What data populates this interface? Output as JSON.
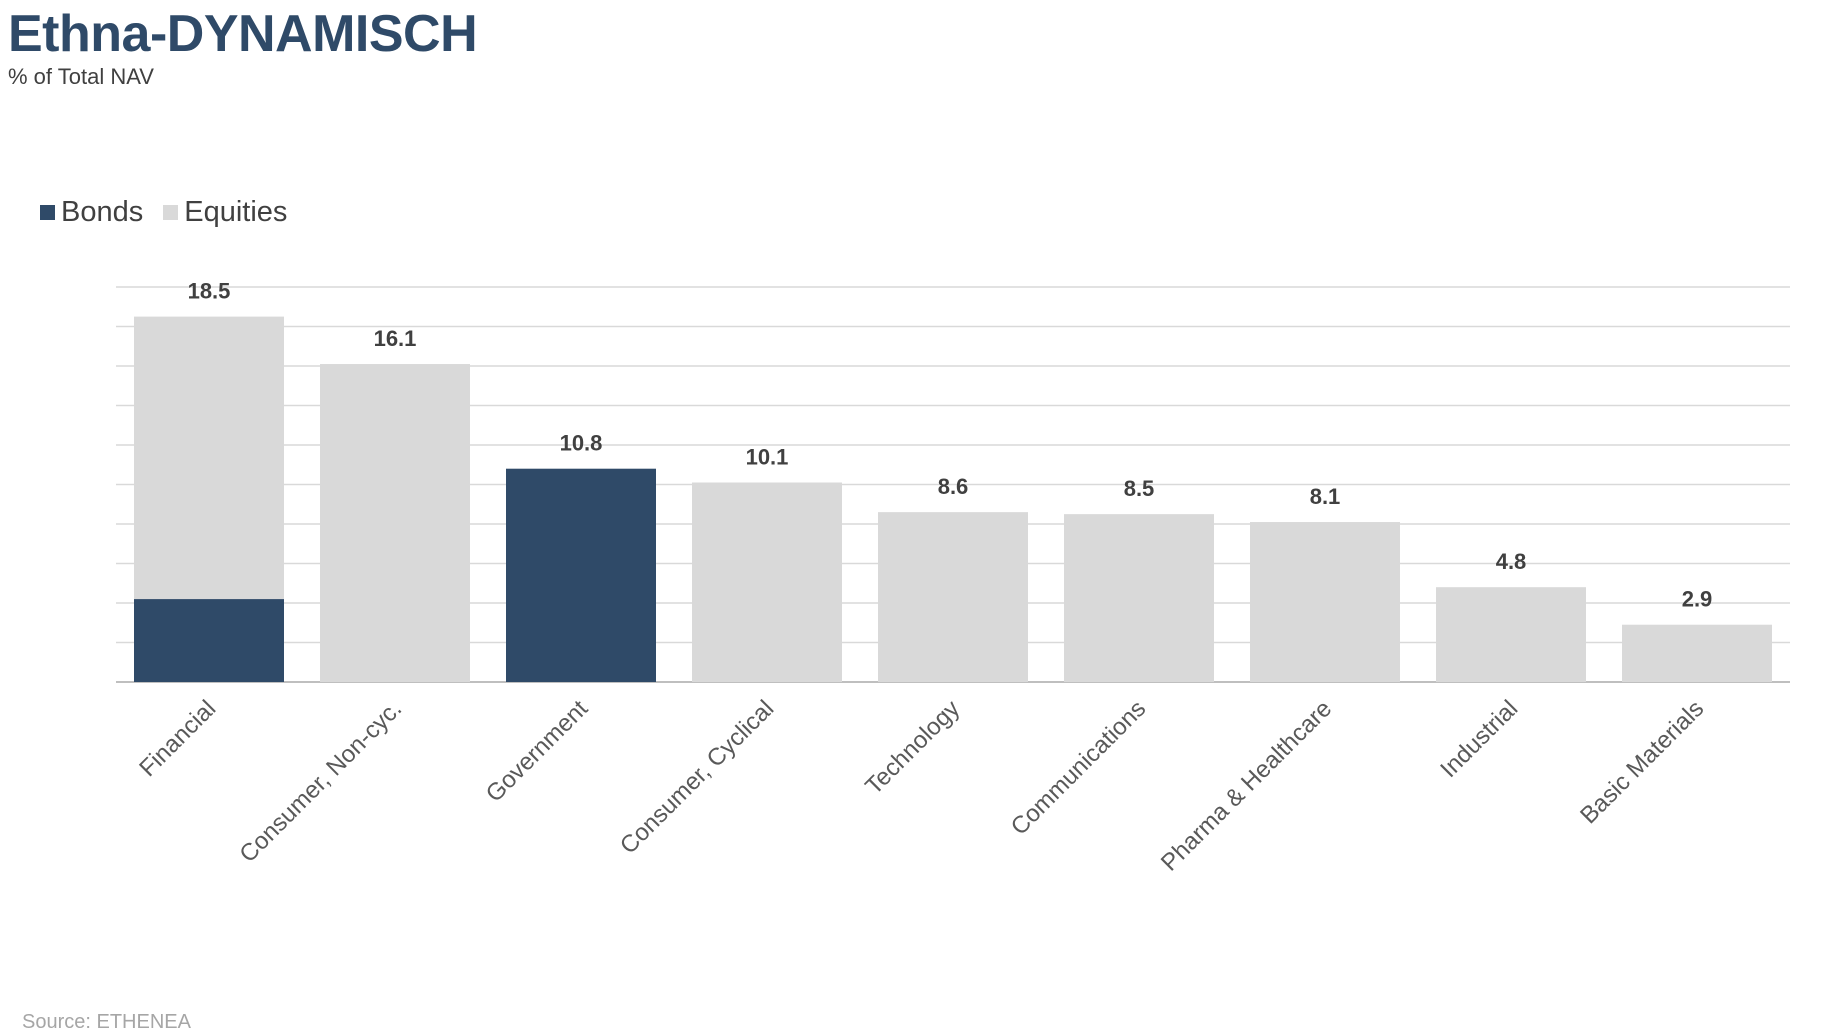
{
  "title": "Ethna-DYNAMISCH",
  "subtitle": "% of Total NAV",
  "source": "Source: ETHENEA",
  "legend": [
    {
      "name": "Bonds",
      "color": "#2f4a68"
    },
    {
      "name": "Equities",
      "color": "#d9d9d9"
    }
  ],
  "chart_data": {
    "type": "bar",
    "stacked": true,
    "categories": [
      "Financial",
      "Consumer, Non-cyc.",
      "Government",
      "Consumer, Cyclical",
      "Technology",
      "Communications",
      "Pharma & Healthcare",
      "Industrial",
      "Basic Materials"
    ],
    "series": [
      {
        "name": "Bonds",
        "color": "#2f4a68",
        "values": [
          4.2,
          0,
          10.8,
          0,
          0,
          0,
          0,
          0,
          0
        ]
      },
      {
        "name": "Equities",
        "color": "#d9d9d9",
        "values": [
          14.3,
          16.1,
          0,
          10.1,
          8.6,
          8.5,
          8.1,
          4.8,
          2.9
        ]
      }
    ],
    "totals": [
      "18.5",
      "16.1",
      "10.8",
      "10.1",
      "8.6",
      "8.5",
      "8.1",
      "4.8",
      "2.9"
    ],
    "ylim": [
      0,
      20
    ],
    "grid": true,
    "gridlines": 10,
    "legend_position": "top-left"
  }
}
